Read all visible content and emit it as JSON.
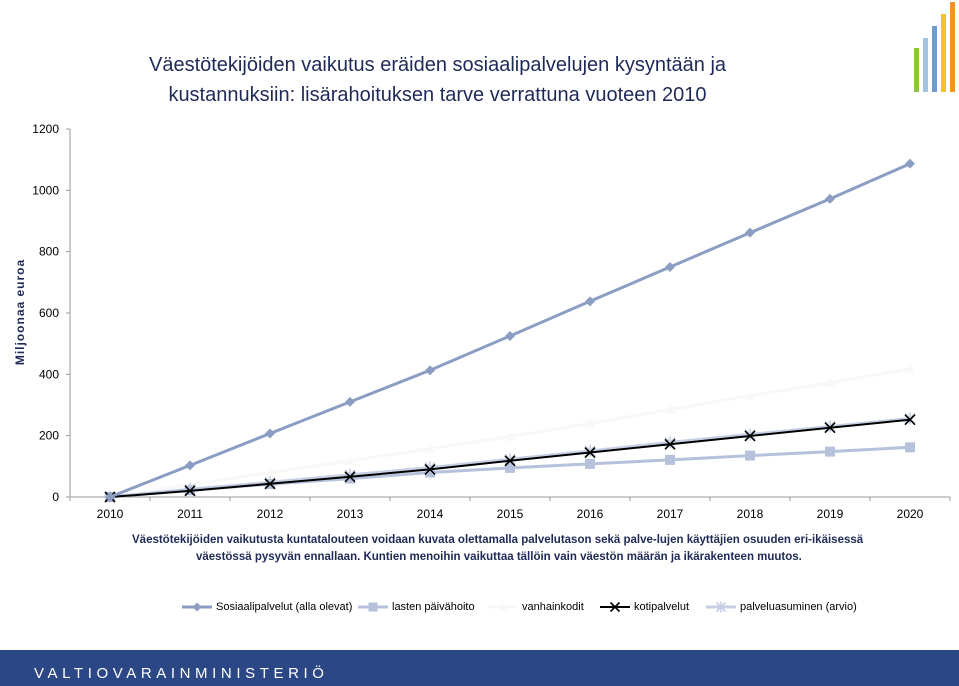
{
  "title_lines": [
    "Väestötekijöiden vaikutus eräiden sosiaalipalvelujen kysyntään ja",
    "kustannuksiin: lisärahoituksen tarve verrattuna vuoteen 2010"
  ],
  "note_lines": [
    "Väestötekijöiden vaikutusta kuntatalouteen voidaan kuvata olettamalla palvelutason sekä palve-lujen käyttäjien osuuden eri-ikäisessä",
    "väestössä pysyvän ennallaan. Kuntien menoihin vaikuttaa tällöin vain väestön määrän ja ikärakenteen muutos."
  ],
  "footer_text": "VALTIOVARAINMINISTERIÖ",
  "colors": {
    "title": "#1f2a57",
    "footer_bg": "#2c4785",
    "deco_bars": [
      "#8cc63f",
      "#a3c4e0",
      "#6f9bcb",
      "#f2c12e",
      "#f7941d"
    ]
  },
  "chart_data": {
    "type": "line",
    "title": "",
    "xlabel": "",
    "ylabel": "Miljoonaa euroa",
    "ylim": [
      0,
      1200
    ],
    "yticks": [
      0,
      200,
      400,
      600,
      800,
      1000,
      1200
    ],
    "categories": [
      "2010",
      "2011",
      "2012",
      "2013",
      "2014",
      "2015",
      "2016",
      "2017",
      "2018",
      "2019",
      "2020"
    ],
    "grid": false,
    "legend_position": "bottom",
    "series": [
      {
        "name": "Sosiaalipalvelut (alla olevat)",
        "color": "#8b9dc3",
        "marker": "diamond",
        "values": [
          0,
          103,
          207,
          310,
          413,
          525,
          638,
          750,
          862,
          972,
          1087
        ]
      },
      {
        "name": "lasten päivähoito",
        "color": "#b6c2dc",
        "marker": "square",
        "values": [
          0,
          22,
          42,
          60,
          80,
          95,
          108,
          121,
          135,
          148,
          162
        ]
      },
      {
        "name": "vanhainkodit",
        "color": "#f8f8f8",
        "marker": "triangle",
        "values": [
          0,
          40,
          80,
          118,
          157,
          197,
          240,
          285,
          330,
          372,
          418
        ]
      },
      {
        "name": "kotipalvelut",
        "color": "#000000",
        "marker": "x",
        "values": [
          0,
          20,
          43,
          66,
          90,
          118,
          145,
          172,
          199,
          226,
          252
        ]
      },
      {
        "name": "palveluasuminen (arvio)",
        "color": "#c6cfe3",
        "marker": "star",
        "values": [
          0,
          25,
          48,
          72,
          96,
          123,
          150,
          178,
          204,
          230,
          256
        ]
      }
    ]
  }
}
